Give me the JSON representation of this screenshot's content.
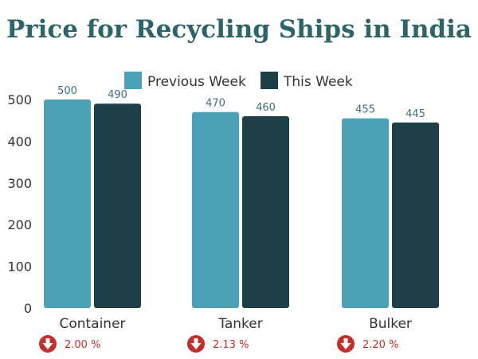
{
  "chart_data": {
    "type": "bar",
    "title": "Price for Recycling Ships in India",
    "categories": [
      "Container",
      "Tanker",
      "Bulker"
    ],
    "series": [
      {
        "name": "Previous Week",
        "values": [
          500,
          470,
          455
        ],
        "color": "#4ba1b8"
      },
      {
        "name": "This Week",
        "values": [
          490,
          460,
          445
        ],
        "color": "#1d3f48"
      }
    ],
    "changes": [
      "2.00 %",
      "2.13 %",
      "2.20 %"
    ],
    "change_direction": "down",
    "ylim": [
      0,
      500
    ],
    "yticks": [
      0,
      100,
      200,
      300,
      400,
      500
    ],
    "xlabel": "",
    "ylabel": "",
    "legend_position": "top",
    "grid": false,
    "colors": {
      "title": "#2d6468",
      "axis_text": "#333333",
      "label_text": "#3f6f77",
      "change_red": "#c2302c"
    }
  }
}
